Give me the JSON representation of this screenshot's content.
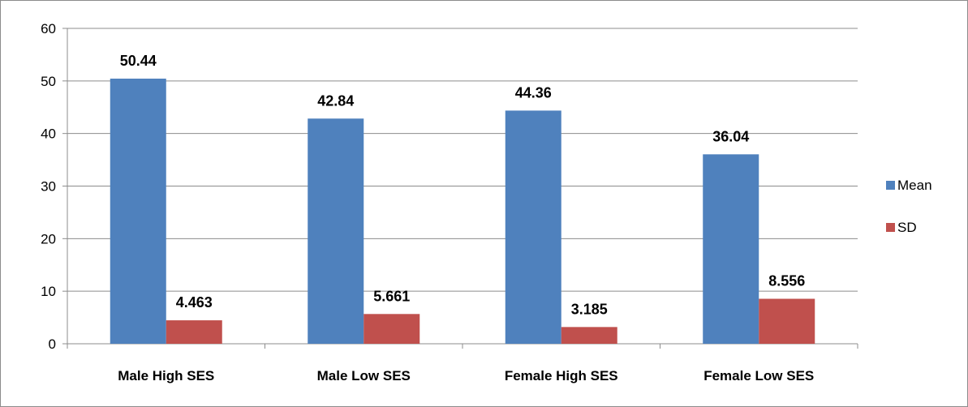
{
  "chart_data": {
    "type": "bar",
    "categories": [
      "Male High SES",
      "Male Low SES",
      "Female High SES",
      "Female Low SES"
    ],
    "series": [
      {
        "name": "Mean",
        "values": [
          50.44,
          42.84,
          44.36,
          36.04
        ],
        "labels": [
          "50.44",
          "42.84",
          "44.36",
          "36.04"
        ],
        "color": "#4F81BD"
      },
      {
        "name": "SD",
        "values": [
          4.463,
          5.661,
          3.185,
          8.556
        ],
        "labels": [
          "4.463",
          "5.661",
          "3.185",
          "8.556"
        ],
        "color": "#C0504D"
      }
    ],
    "yticks": [
      "0",
      "10",
      "20",
      "30",
      "40",
      "50",
      "60"
    ],
    "ylim": [
      0,
      60
    ],
    "grid": true,
    "legend_position": "right"
  }
}
